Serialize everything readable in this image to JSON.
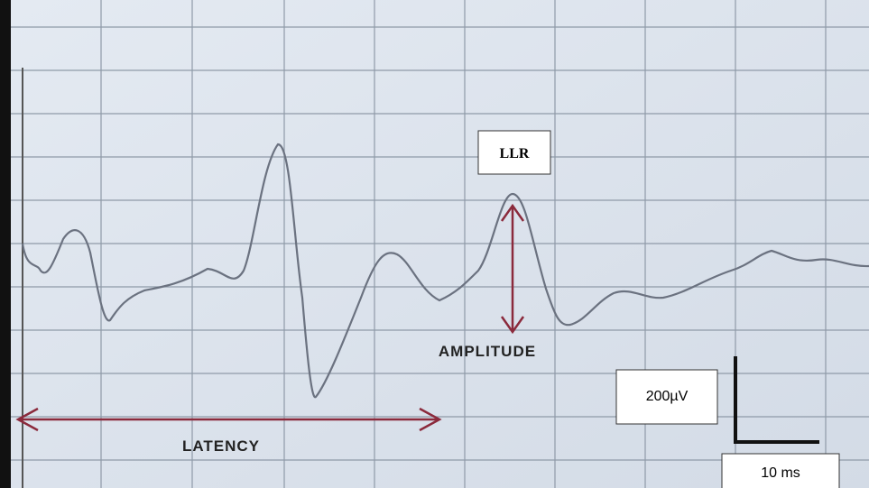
{
  "labels": {
    "peak": "LLR",
    "amplitude": "AMPLITUDE",
    "latency": "LATENCY",
    "voltage_scale": "200µV",
    "time_scale": "10 ms"
  }
}
